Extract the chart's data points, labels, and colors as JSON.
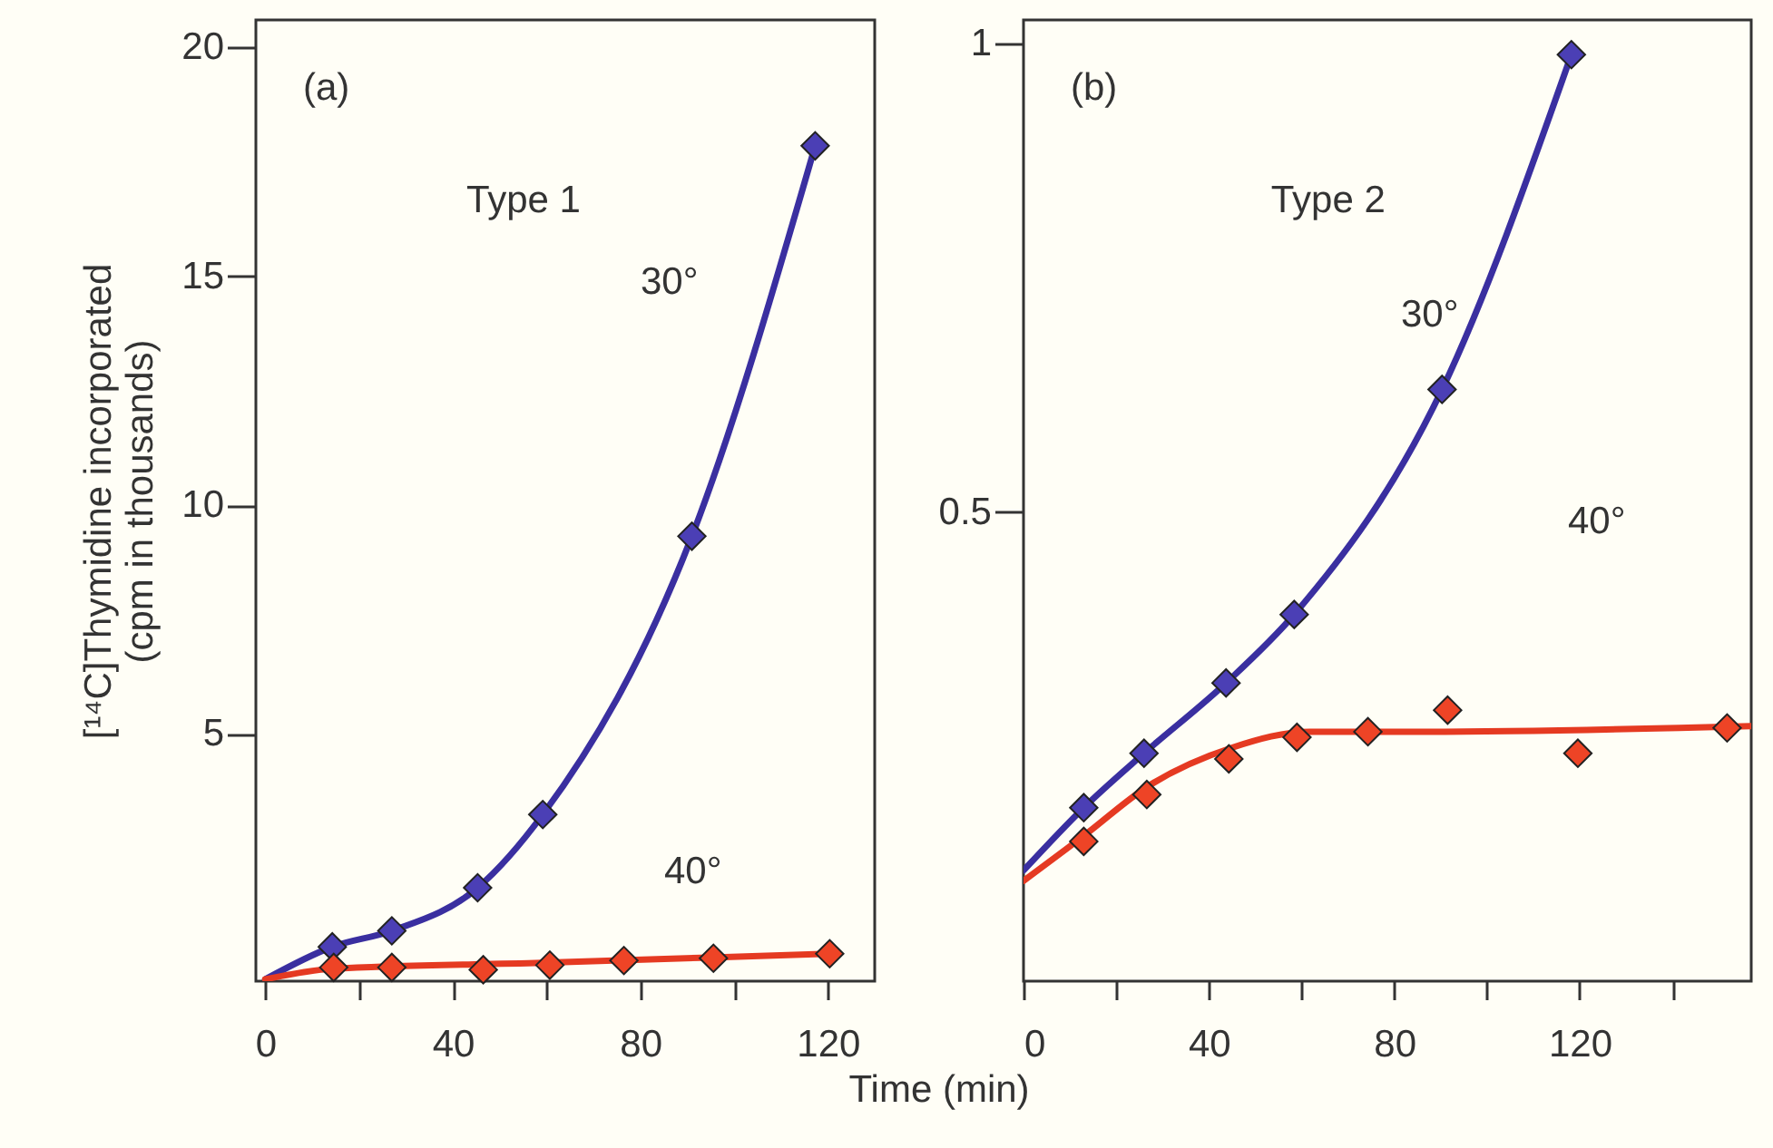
{
  "chart_data": [
    {
      "type": "line",
      "title": "(a)",
      "subtitle": "Type 1",
      "xlabel": "Time (min)",
      "ylabel": "[¹⁴C]Thymidine incorporated (cpm in thousands)",
      "xlim": [
        -2,
        130
      ],
      "ylim": [
        -0.4,
        20.6
      ],
      "xticks": [
        0,
        {
          "value": 20,
          "label": null
        },
        40,
        {
          "value": 60,
          "label": null
        },
        80,
        {
          "value": 100,
          "label": null
        },
        120
      ],
      "yticks": [
        5,
        10,
        15,
        20
      ],
      "grid": false,
      "series": [
        {
          "type": "line",
          "marker": "none",
          "color": "#3a2fa0",
          "x": [
            0,
            14.3,
            27,
            45.3,
            59.2,
            91,
            117.3
          ],
          "values": [
            -0.36,
            0.35,
            0.7,
            1.64,
            3.24,
            9.32,
            17.85
          ]
        },
        {
          "type": "line",
          "marker": "none",
          "color": "#e53a22",
          "x": [
            0,
            14.3,
            59,
            117.3,
            120.4
          ],
          "values": [
            -0.36,
            -0.13,
            0,
            0.19,
            0.2
          ]
        },
        {
          "type": "scatter",
          "marker": "diamond",
          "color": "#4b3fb5",
          "x": [
            14.3,
            27,
            45.3,
            59.2,
            91,
            117.3
          ],
          "values": [
            0.35,
            0.7,
            1.64,
            3.24,
            9.32,
            17.85
          ]
        },
        {
          "type": "scatter",
          "marker": "diamond",
          "color": "#ee4426",
          "x": [
            14.6,
            27,
            46.5,
            60.7,
            76.5,
            95.6,
            120.4
          ],
          "values": [
            -0.1,
            -0.1,
            -0.15,
            -0.05,
            0.05,
            0.1,
            0.2
          ]
        }
      ],
      "annotations": [
        "30°",
        "40°"
      ]
    },
    {
      "type": "line",
      "title": "(b)",
      "subtitle": "Type 2",
      "xlim": [
        0,
        157
      ],
      "ylim": [
        0,
        1.025
      ],
      "xticks": [
        0,
        {
          "value": 20,
          "label": null
        },
        40,
        {
          "value": 60,
          "label": null
        },
        80,
        {
          "value": 100,
          "label": null
        },
        120,
        {
          "value": 140,
          "label": null
        }
      ],
      "yticks": [
        0.5,
        1
      ],
      "grid": false,
      "series": [
        {
          "type": "line",
          "marker": "none",
          "color": "#3a2fa0",
          "x": [
            0,
            13,
            26,
            43.7,
            58.4,
            90.3,
            118.2
          ],
          "values": [
            0.118,
            0.185,
            0.243,
            0.318,
            0.391,
            0.631,
            0.988
          ]
        },
        {
          "type": "line",
          "marker": "none",
          "color": "#e53a22",
          "x": [
            0,
            13,
            26.6,
            45,
            61.8,
            86.9,
            157
          ],
          "values": [
            0.107,
            0.155,
            0.207,
            0.249,
            0.266,
            0.266,
            0.272
          ]
        },
        {
          "type": "scatter",
          "marker": "diamond",
          "color": "#4b3fb5",
          "x": [
            13,
            26,
            43.7,
            58.4,
            90.3,
            118.2
          ],
          "values": [
            0.185,
            0.243,
            0.318,
            0.391,
            0.631,
            0.988
          ]
        },
        {
          "type": "scatter",
          "marker": "diamond",
          "color": "#ee4426",
          "x": [
            13,
            26.6,
            44.3,
            59,
            74.3,
            91.5,
            119.6,
            151.8
          ],
          "values": [
            0.149,
            0.199,
            0.237,
            0.26,
            0.266,
            0.289,
            0.243,
            0.27
          ]
        }
      ],
      "annotations": [
        "30°",
        "40°"
      ]
    }
  ]
}
